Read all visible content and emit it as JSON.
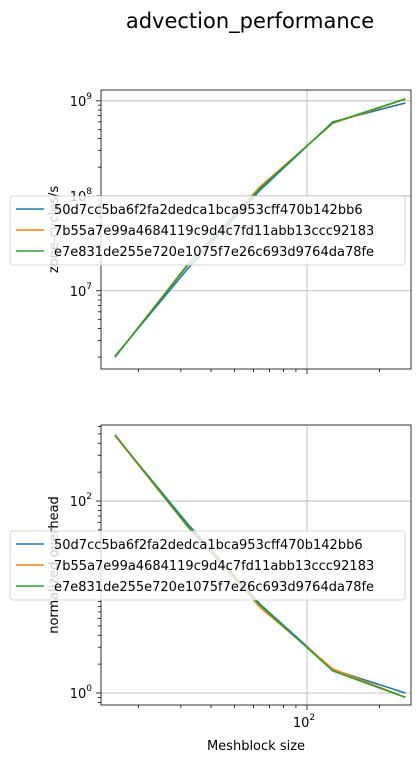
{
  "title": "advection_performance",
  "colors": {
    "series": [
      "#1f77b4",
      "#ff7f0e",
      "#2ca02c"
    ],
    "grid": "#b0b0b0"
  },
  "chart_data": [
    {
      "type": "line",
      "xscale": "log",
      "yscale": "log",
      "xlim": [
        14,
        270
      ],
      "ylim": [
        1500000,
        1300000000
      ],
      "ylabel": "zone-cycles/s",
      "xlabel": "",
      "grid": true,
      "legend": "center-left",
      "yticks": [
        {
          "v": 10000000,
          "base": "10",
          "exp": "7"
        },
        {
          "v": 100000000,
          "base": "10",
          "exp": "8"
        },
        {
          "v": 1000000000,
          "base": "10",
          "exp": "9"
        }
      ],
      "xticks": [
        100
      ],
      "x": [
        16,
        32,
        64,
        128,
        256
      ],
      "series": [
        {
          "name": "50d7cc5ba6f2fa2dedca1bca953cff470b142bb6",
          "values": [
            2050000,
            17000000,
            115000000,
            600000000,
            950000000
          ]
        },
        {
          "name": "7b55a7e99a4684119c9d4c7fd11abb13ccc92183",
          "values": [
            2000000,
            19000000,
            125000000,
            580000000,
            1040000000
          ]
        },
        {
          "name": "e7e831de255e720e1075f7e26c693d9764da78fe",
          "values": [
            2000000,
            18500000,
            120000000,
            590000000,
            1050000000
          ]
        }
      ]
    },
    {
      "type": "line",
      "xscale": "log",
      "yscale": "log",
      "xlim": [
        14,
        270
      ],
      "ylim": [
        0.75,
        620
      ],
      "ylabel": "normalized overhead",
      "xlabel": "Meshblock size",
      "grid": true,
      "legend": "center-left",
      "yticks": [
        {
          "v": 1,
          "base": "10",
          "exp": "0"
        },
        {
          "v": 100,
          "base": "10",
          "exp": "2"
        }
      ],
      "xticks": [
        {
          "v": 100,
          "base": "10",
          "exp": "2"
        }
      ],
      "x": [
        16,
        32,
        64,
        128,
        256
      ],
      "series": [
        {
          "name": "50d7cc5ba6f2fa2dedca1bca953cff470b142bb6",
          "values": [
            480,
            58,
            8.4,
            1.75,
            1.0
          ]
        },
        {
          "name": "7b55a7e99a4684119c9d4c7fd11abb13ccc92183",
          "values": [
            480,
            54,
            7.8,
            1.78,
            0.9
          ]
        },
        {
          "name": "e7e831de255e720e1075f7e26c693d9764da78fe",
          "values": [
            490,
            55,
            8.2,
            1.7,
            0.9
          ]
        }
      ]
    }
  ]
}
